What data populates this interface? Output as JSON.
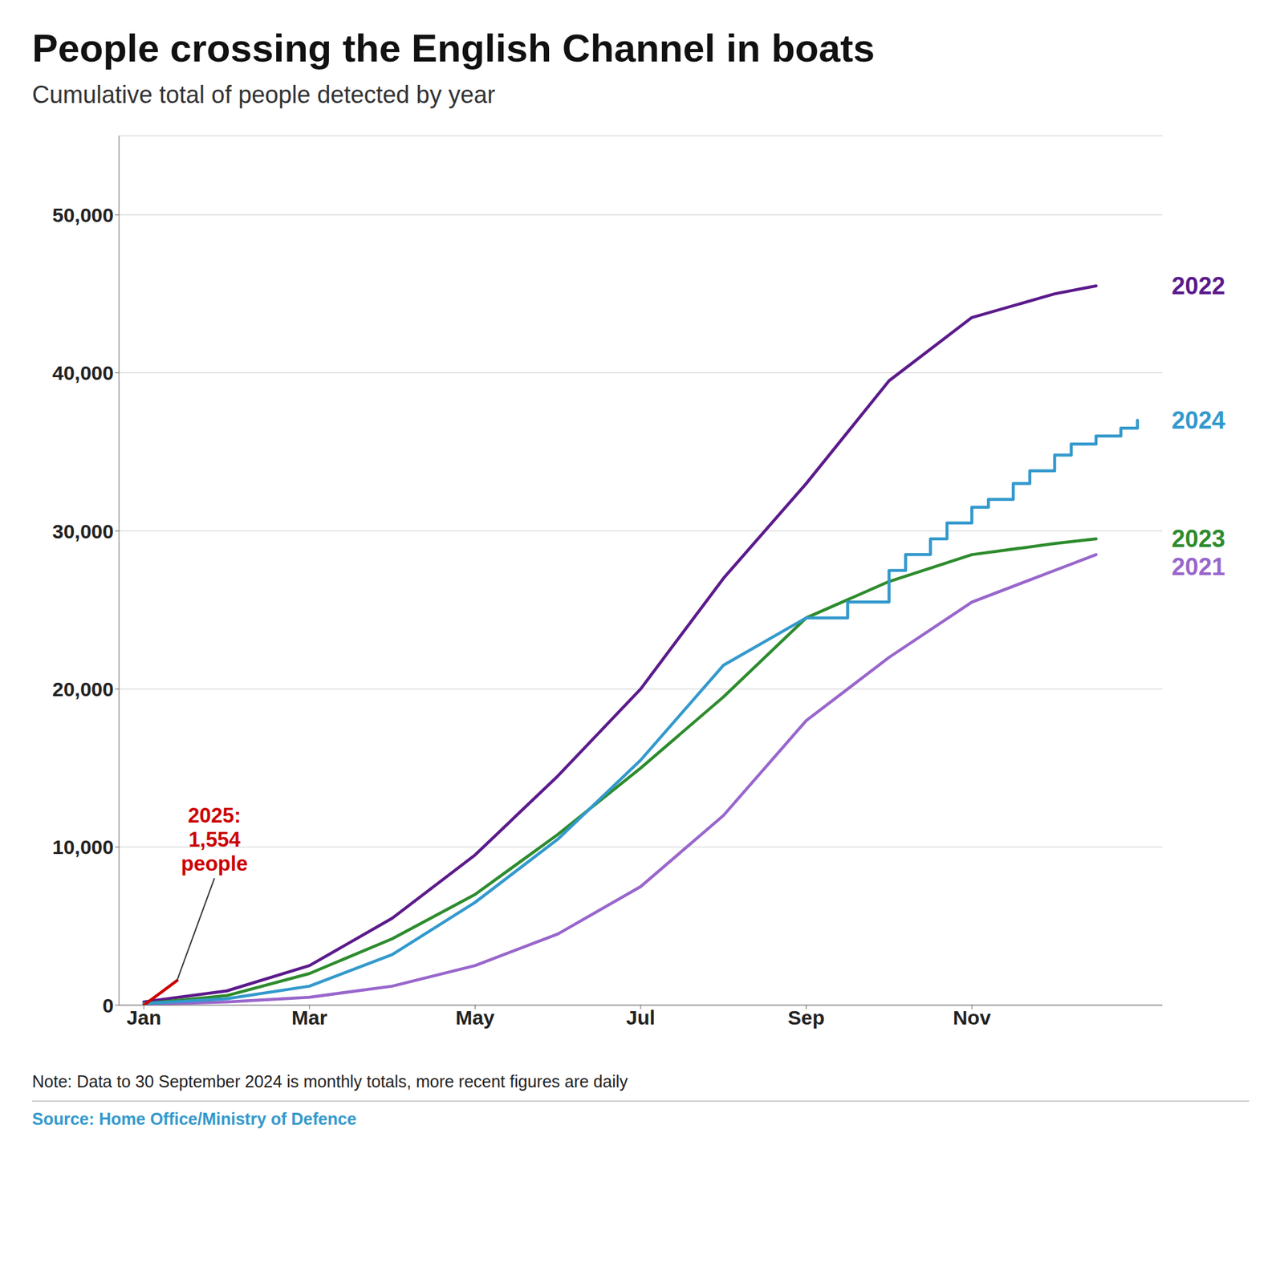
{
  "chart_data": {
    "type": "line",
    "title": "People crossing the English Channel in boats",
    "subtitle": "Cumulative total of people detected by year",
    "note": "Note: Data to 30 September 2024 is monthly totals, more recent figures are daily",
    "source": "Source: Home Office/Ministry of Defence",
    "xlim": [
      0.7,
      13.3
    ],
    "xticks": [
      {
        "value": 1,
        "label": "Jan"
      },
      {
        "value": 3,
        "label": "Mar"
      },
      {
        "value": 5,
        "label": "May"
      },
      {
        "value": 7,
        "label": "Jul"
      },
      {
        "value": 9,
        "label": "Sep"
      },
      {
        "value": 11,
        "label": "Nov"
      }
    ],
    "ylim": [
      0,
      55000
    ],
    "yticks": [
      0,
      {
        "value": 10000,
        "label": "10,000"
      },
      {
        "value": 20000,
        "label": "20,000"
      },
      {
        "value": 30000,
        "label": "30,000"
      },
      {
        "value": 40000,
        "label": "40,000"
      },
      {
        "value": 50000,
        "label": "50,000"
      }
    ],
    "grid": true,
    "series": [
      {
        "name": "2021",
        "color": "#9966cc",
        "x": [
          1,
          2,
          3,
          4,
          5,
          6,
          7,
          8,
          9,
          10,
          11,
          12,
          12.5
        ],
        "values": [
          50,
          200,
          500,
          1200,
          2500,
          4500,
          7500,
          12000,
          18000,
          22000,
          25500,
          27500,
          28500
        ]
      },
      {
        "name": "2022",
        "color": "#5b1a8b",
        "x": [
          1,
          2,
          3,
          4,
          5,
          6,
          7,
          8,
          9,
          10,
          11,
          12,
          12.5
        ],
        "values": [
          200,
          900,
          2500,
          5500,
          9500,
          14500,
          20000,
          27000,
          33000,
          39500,
          43500,
          45000,
          45500
        ]
      },
      {
        "name": "2023",
        "color": "#2d8b2d",
        "x": [
          1,
          2,
          3,
          4,
          5,
          6,
          7,
          8,
          9,
          10,
          11,
          12,
          12.5
        ],
        "values": [
          100,
          600,
          2000,
          4200,
          7000,
          10800,
          15000,
          19500,
          24500,
          26800,
          28500,
          29200,
          29500
        ]
      },
      {
        "name": "2024",
        "color": "#3399cc",
        "x": [
          1,
          2,
          3,
          4,
          5,
          6,
          7,
          8,
          9
        ],
        "values": [
          100,
          400,
          1200,
          3200,
          6500,
          10500,
          15500,
          21500,
          24500
        ]
      },
      {
        "name": "2024",
        "color": "#3399cc",
        "type": "step",
        "x": [
          9,
          9.5,
          10,
          10.2,
          10.5,
          10.7,
          11.0,
          11.2,
          11.5,
          11.7,
          12.0,
          12.2,
          12.5,
          12.8,
          13.0
        ],
        "values": [
          24500,
          25500,
          27500,
          28500,
          29500,
          30500,
          31500,
          32000,
          33000,
          33800,
          34800,
          35500,
          36000,
          36500,
          37000
        ]
      },
      {
        "color": "#cc0000",
        "x": [
          1,
          1.4
        ],
        "values": [
          0,
          1554
        ]
      }
    ],
    "annotations": [
      {
        "text": "2025:\n1,554\npeople",
        "x": 1.4,
        "y": 1554,
        "color": "#cc0000"
      }
    ]
  }
}
